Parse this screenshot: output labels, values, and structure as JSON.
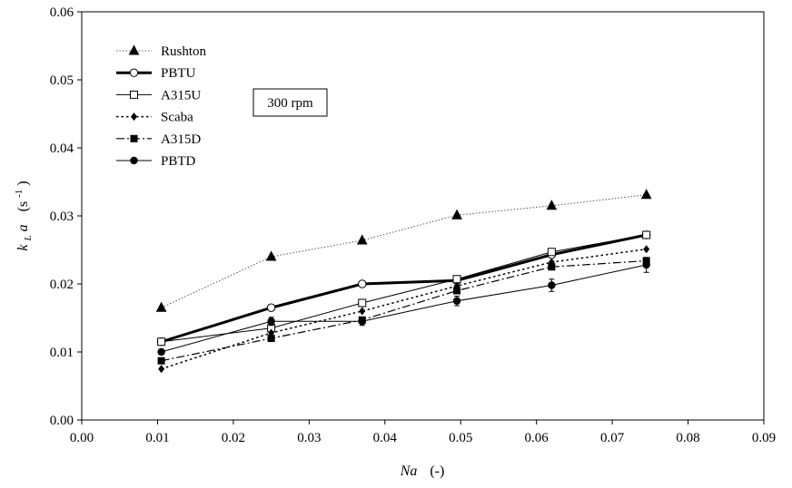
{
  "chart_data": {
    "type": "line",
    "x_label_main": "Na",
    "x_label_unit": "(-)",
    "y_label_main": "k",
    "y_label_sub": "L",
    "y_label_rest": "a",
    "y_label_unit": "(s",
    "y_label_exp": "-1",
    "y_label_close": ")",
    "xlim": [
      0.0,
      0.09
    ],
    "ylim": [
      0.0,
      0.06
    ],
    "x_ticks": [
      "0.00",
      "0.01",
      "0.02",
      "0.03",
      "0.04",
      "0.05",
      "0.06",
      "0.07",
      "0.08",
      "0.09"
    ],
    "y_ticks": [
      "0.00",
      "0.01",
      "0.02",
      "0.03",
      "0.04",
      "0.05",
      "0.06"
    ],
    "annotation": "300 rpm",
    "legend_position": "top-left",
    "grid": false,
    "series": [
      {
        "name": "Rushton",
        "style": "dotted",
        "marker": "triangle-filled",
        "color": "#000000",
        "x": [
          0.0105,
          0.025,
          0.037,
          0.0495,
          0.062,
          0.0745
        ],
        "y": [
          0.0165,
          0.024,
          0.0264,
          0.0301,
          0.0315,
          0.0331
        ]
      },
      {
        "name": "PBTU",
        "style": "solid-thick",
        "marker": "circle-open",
        "color": "#000000",
        "x": [
          0.0105,
          0.025,
          0.037,
          0.0495,
          0.062,
          0.0745
        ],
        "y": [
          0.0115,
          0.0165,
          0.02,
          0.0205,
          0.0243,
          0.0272
        ]
      },
      {
        "name": "A315U",
        "style": "solid-thin",
        "marker": "square-open",
        "color": "#000000",
        "x": [
          0.0105,
          0.025,
          0.037,
          0.0495,
          0.062,
          0.0745
        ],
        "y": [
          0.0115,
          0.0135,
          0.0172,
          0.0207,
          0.0247,
          0.0272
        ]
      },
      {
        "name": "Scaba",
        "style": "dotted-medium",
        "marker": "diamond-filled",
        "color": "#000000",
        "x": [
          0.0105,
          0.025,
          0.037,
          0.0495,
          0.062,
          0.0745
        ],
        "y": [
          0.0075,
          0.0128,
          0.016,
          0.0197,
          0.0232,
          0.0251
        ]
      },
      {
        "name": "A315D",
        "style": "dash-dot",
        "marker": "square-filled",
        "color": "#000000",
        "x": [
          0.0105,
          0.025,
          0.037,
          0.0495,
          0.062,
          0.0745
        ],
        "y": [
          0.0087,
          0.012,
          0.0147,
          0.019,
          0.0225,
          0.0234
        ]
      },
      {
        "name": "PBTD",
        "style": "solid-thin",
        "marker": "circle-filled",
        "color": "#000000",
        "x": [
          0.0105,
          0.025,
          0.037,
          0.0495,
          0.062,
          0.0745
        ],
        "y": [
          0.01,
          0.0145,
          0.0145,
          0.0175,
          0.0198,
          0.0228
        ],
        "y_error": [
          0.0004,
          0.0006,
          0.0006,
          0.0007,
          0.0009,
          0.0011
        ]
      }
    ]
  }
}
